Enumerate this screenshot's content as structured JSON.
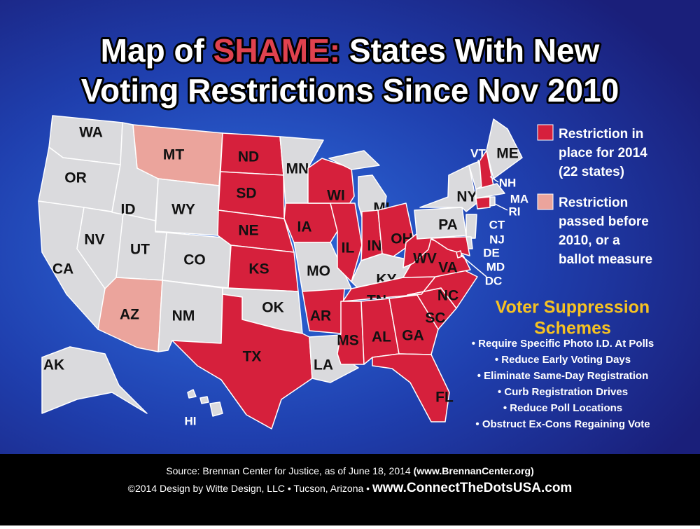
{
  "title": {
    "line1_before": "Map of",
    "line1_highlight": "SHAME:",
    "line1_after": "States With New",
    "line2": "Voting Restrictions Since Nov 2010"
  },
  "legend": [
    {
      "lines": [
        "Restriction in",
        "place for 2014",
        "(22 states)"
      ]
    },
    {
      "lines": [
        "Restriction",
        "passed before",
        "2010, or a",
        "ballot measure"
      ]
    }
  ],
  "schemes": {
    "title_lines": [
      "Voter Suppression",
      "Schemes"
    ],
    "items": [
      "• Require Specific Photo I.D. At Polls",
      "• Reduce Early Voting Days",
      "• Eliminate Same-Day Registration",
      "• Curb Registration Drives",
      "• Reduce Poll Locations",
      "• Obstruct Ex-Cons Regaining Vote"
    ]
  },
  "states": [
    "WA",
    "OR",
    "CA",
    "NV",
    "ID",
    "MT",
    "WY",
    "UT",
    "AZ",
    "CO",
    "NM",
    "ND",
    "SD",
    "NE",
    "KS",
    "OK",
    "TX",
    "MN",
    "IA",
    "MO",
    "AR",
    "LA",
    "WI",
    "IL",
    "MI",
    "IN",
    "OH",
    "KY",
    "TN",
    "MS",
    "AL",
    "GA",
    "FL",
    "SC",
    "NC",
    "VA",
    "WV",
    "PA",
    "NY",
    "VT",
    "NH",
    "ME",
    "MA",
    "RI",
    "CT",
    "NJ",
    "DE",
    "MD",
    "DC",
    "AK",
    "HI"
  ],
  "footer": {
    "line1": "Source: Brennan Center for Justice, as of June 18, 2014",
    "line1_bold": "(www.BrennanCenter.org)",
    "line2": "©2014 Design by Witte Design, LLC • Tucson, Arizona •",
    "line2_bold": "www.ConnectTheDotsUSA.com"
  }
}
